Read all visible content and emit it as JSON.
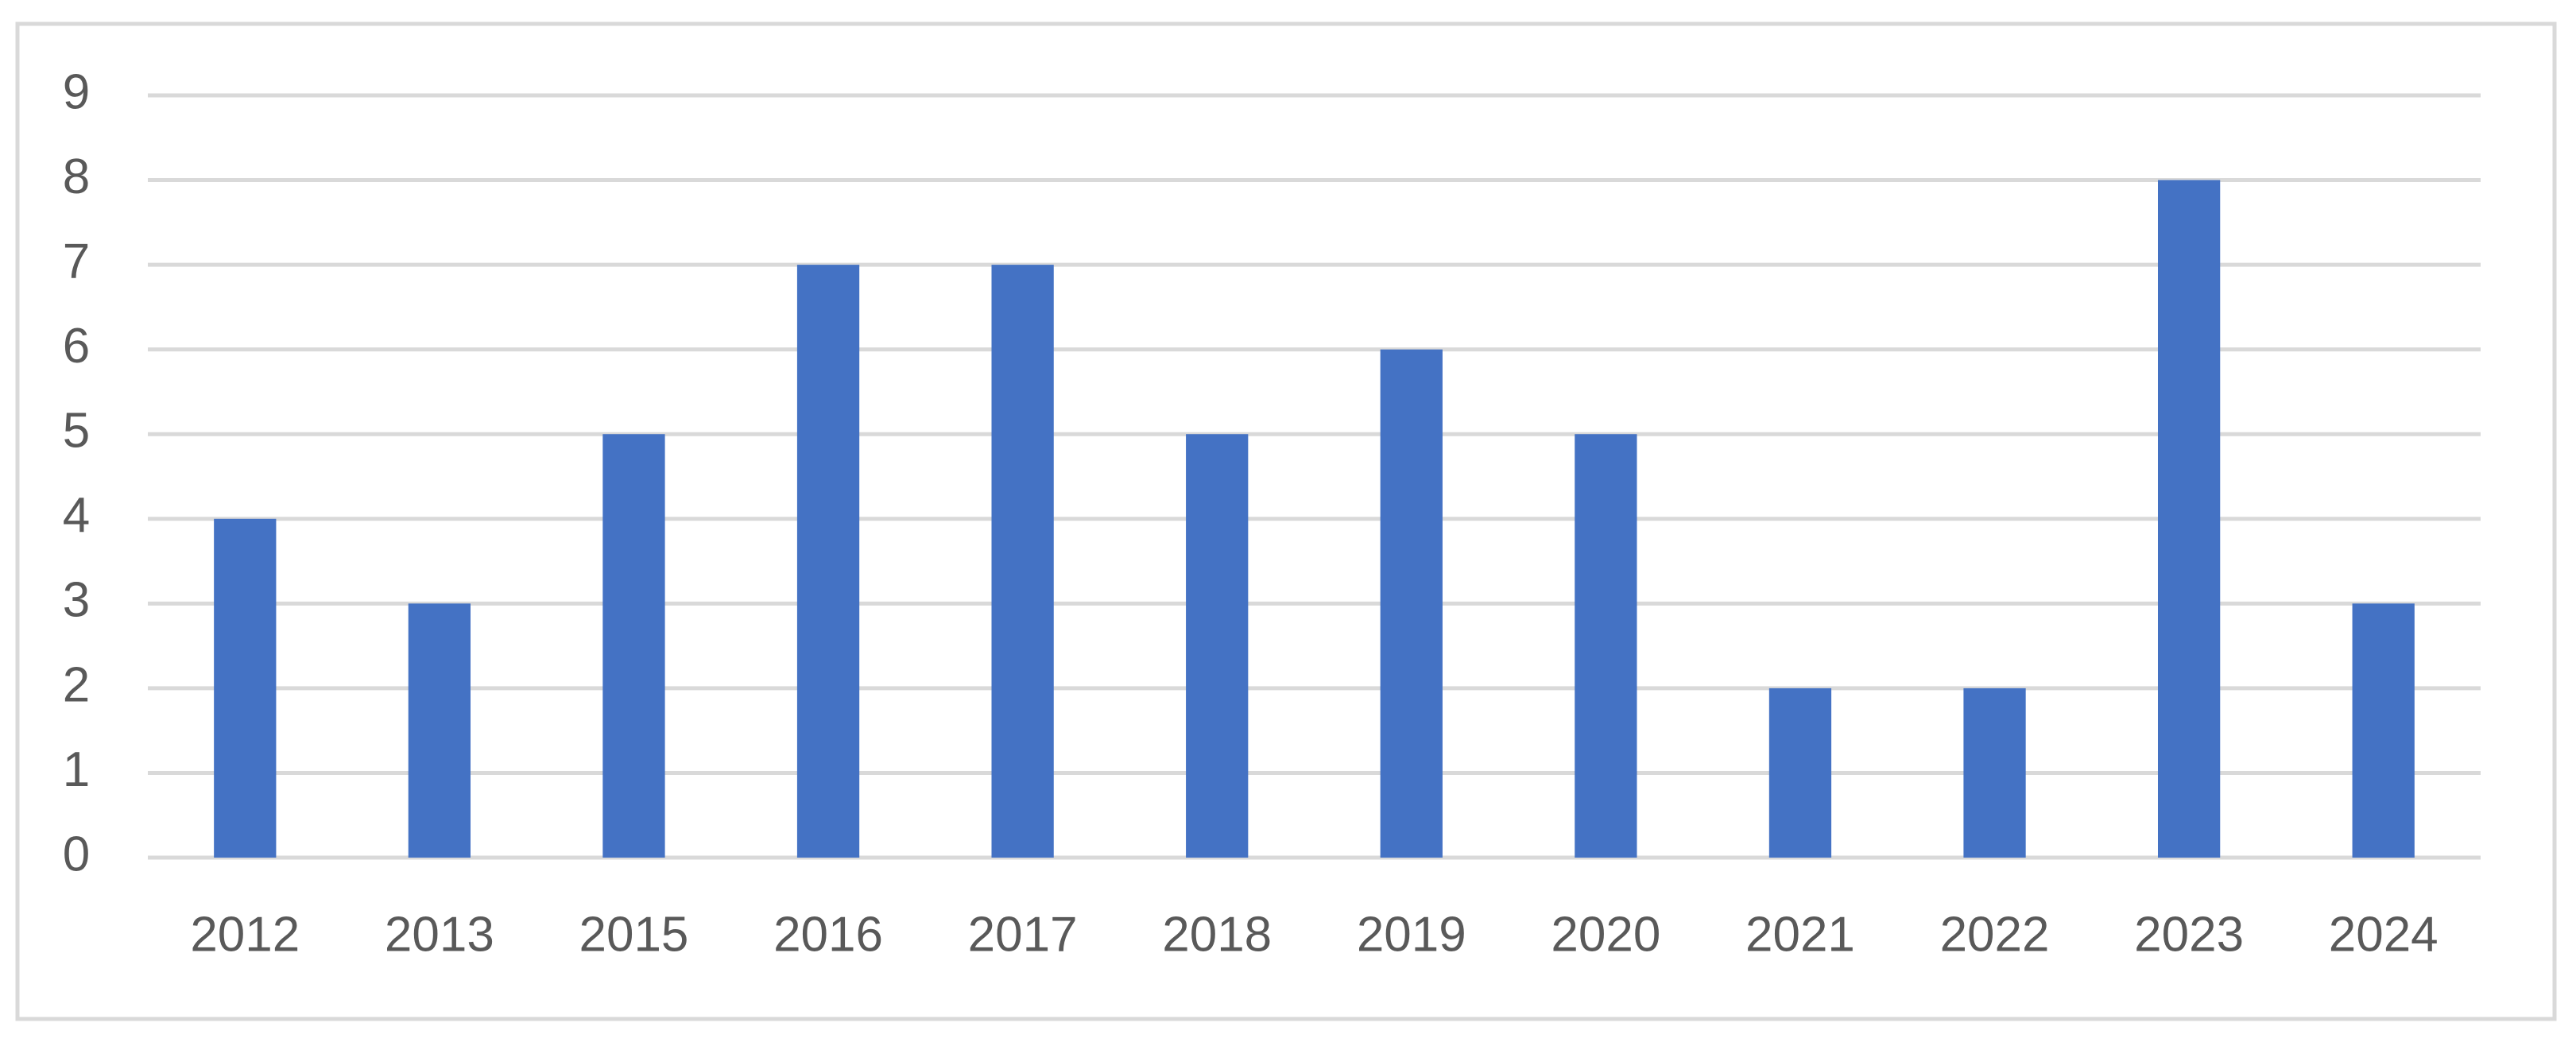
{
  "chart_data": {
    "type": "bar",
    "categories": [
      "2012",
      "2013",
      "2015",
      "2016",
      "2017",
      "2018",
      "2019",
      "2020",
      "2021",
      "2022",
      "2023",
      "2024"
    ],
    "values": [
      4,
      3,
      5,
      7,
      7,
      5,
      6,
      5,
      2,
      2,
      8,
      3
    ],
    "color": "#4472c4",
    "ylim": [
      0,
      9
    ],
    "yticks": [
      0,
      1,
      2,
      3,
      4,
      5,
      6,
      7,
      8,
      9
    ],
    "grid": true
  }
}
